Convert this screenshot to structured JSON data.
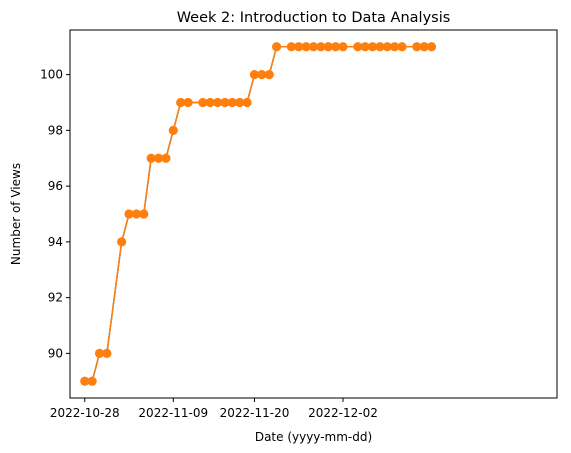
{
  "colors": {
    "series_line": "#1f77b4",
    "series_marker": "#ff7f0e",
    "axis": "#000000",
    "background": "#ffffff"
  },
  "chart_data": {
    "type": "line",
    "title": "Week 2: Introduction to Data Analysis",
    "xlabel": "Date (yyyy-mm-dd)",
    "ylabel": "Number of Views",
    "x_scale": "date",
    "xlim": [
      "2022-10-26",
      "2022-12-31"
    ],
    "ylim": [
      88.4,
      101.6
    ],
    "x_ticks": [
      "2022-10-28",
      "2022-11-09",
      "2022-11-20",
      "2022-12-02"
    ],
    "y_ticks": [
      90,
      92,
      94,
      96,
      98,
      100
    ],
    "grid": false,
    "legend": "none",
    "marker": "circle",
    "series": [
      {
        "x": [
          "2022-10-28",
          "2022-10-29",
          "2022-10-30",
          "2022-10-31",
          "2022-11-02",
          "2022-11-03",
          "2022-11-04",
          "2022-11-05",
          "2022-11-06",
          "2022-11-07",
          "2022-11-08",
          "2022-11-09",
          "2022-11-10",
          "2022-11-11",
          "2022-11-13",
          "2022-11-14",
          "2022-11-15",
          "2022-11-16",
          "2022-11-17",
          "2022-11-18",
          "2022-11-19",
          "2022-11-20",
          "2022-11-21",
          "2022-11-22",
          "2022-11-23",
          "2022-11-25",
          "2022-11-26",
          "2022-11-27",
          "2022-11-28",
          "2022-11-29",
          "2022-11-30",
          "2022-12-01",
          "2022-12-02",
          "2022-12-04",
          "2022-12-05",
          "2022-12-06",
          "2022-12-07",
          "2022-12-08",
          "2022-12-09",
          "2022-12-10",
          "2022-12-12",
          "2022-12-13",
          "2022-12-14"
        ],
        "values": [
          89,
          89,
          90,
          90,
          94,
          95,
          95,
          95,
          97,
          97,
          97,
          98,
          99,
          99,
          99,
          99,
          99,
          99,
          99,
          99,
          99,
          100,
          100,
          100,
          101,
          101,
          101,
          101,
          101,
          101,
          101,
          101,
          101,
          101,
          101,
          101,
          101,
          101,
          101,
          101,
          101,
          101,
          101
        ]
      }
    ]
  }
}
